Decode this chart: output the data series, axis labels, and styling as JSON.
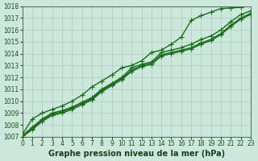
{
  "xlabel": "Graphe pression niveau de la mer (hPa)",
  "ylim": [
    1007,
    1018
  ],
  "xlim": [
    0,
    23
  ],
  "yticks": [
    1007,
    1008,
    1009,
    1010,
    1011,
    1012,
    1013,
    1014,
    1015,
    1016,
    1017,
    1018
  ],
  "xticks": [
    0,
    1,
    2,
    3,
    4,
    5,
    6,
    7,
    8,
    9,
    10,
    11,
    12,
    13,
    14,
    15,
    16,
    17,
    18,
    19,
    20,
    21,
    22,
    23
  ],
  "bg_color": "#cce8dd",
  "grid_color": "#aaccbb",
  "line_color": "#1a6b1a",
  "series": [
    {
      "x": [
        0,
        1,
        2,
        3,
        4,
        5,
        6,
        7,
        8,
        9,
        10,
        11,
        12,
        13,
        14,
        15,
        16,
        17,
        18,
        19,
        20,
        21,
        22,
        23
      ],
      "y": [
        1007.1,
        1007.8,
        1008.5,
        1009.0,
        1009.2,
        1009.5,
        1009.9,
        1010.3,
        1011.0,
        1011.5,
        1012.0,
        1012.8,
        1013.1,
        1013.3,
        1014.1,
        1014.3,
        1014.5,
        1014.8,
        1015.2,
        1015.5,
        1016.0,
        1016.7,
        1017.3,
        1017.6
      ]
    },
    {
      "x": [
        0,
        1,
        2,
        3,
        4,
        5,
        6,
        7,
        8,
        9,
        10,
        11,
        12,
        13,
        14,
        15,
        16,
        17,
        18,
        19,
        20,
        21,
        22,
        23
      ],
      "y": [
        1007.0,
        1007.7,
        1008.4,
        1008.9,
        1009.1,
        1009.4,
        1009.8,
        1010.2,
        1010.9,
        1011.4,
        1011.9,
        1012.6,
        1013.0,
        1013.2,
        1013.9,
        1014.1,
        1014.3,
        1014.5,
        1014.9,
        1015.2,
        1015.7,
        1016.4,
        1017.0,
        1017.4
      ]
    },
    {
      "x": [
        0,
        1,
        2,
        3,
        4,
        5,
        6,
        7,
        8,
        9,
        10,
        11,
        12,
        13,
        14,
        15,
        16,
        17,
        18,
        19,
        20,
        21,
        22,
        23
      ],
      "y": [
        1007.0,
        1007.6,
        1008.3,
        1008.8,
        1009.0,
        1009.3,
        1009.7,
        1010.1,
        1010.8,
        1011.3,
        1011.8,
        1012.5,
        1012.9,
        1013.1,
        1013.8,
        1014.0,
        1014.2,
        1014.4,
        1014.8,
        1015.1,
        1015.6,
        1016.3,
        1016.9,
        1017.3
      ]
    },
    {
      "x": [
        0,
        1,
        2,
        3,
        4,
        5,
        6,
        7,
        8,
        9,
        10,
        11,
        12,
        13,
        14,
        15,
        16,
        17,
        18,
        19,
        20,
        21,
        22
      ],
      "y": [
        1007.2,
        1008.5,
        1009.0,
        1009.3,
        1009.6,
        1010.0,
        1010.5,
        1011.2,
        1011.7,
        1012.2,
        1012.8,
        1013.0,
        1013.4,
        1014.1,
        1014.3,
        1014.8,
        1015.4,
        1016.8,
        1017.2,
        1017.5,
        1017.8,
        1017.85,
        1017.9
      ]
    }
  ],
  "marker": "+",
  "markersize": 4,
  "linewidth": 1.0,
  "tick_fontsize": 5.5,
  "label_fontsize": 7
}
